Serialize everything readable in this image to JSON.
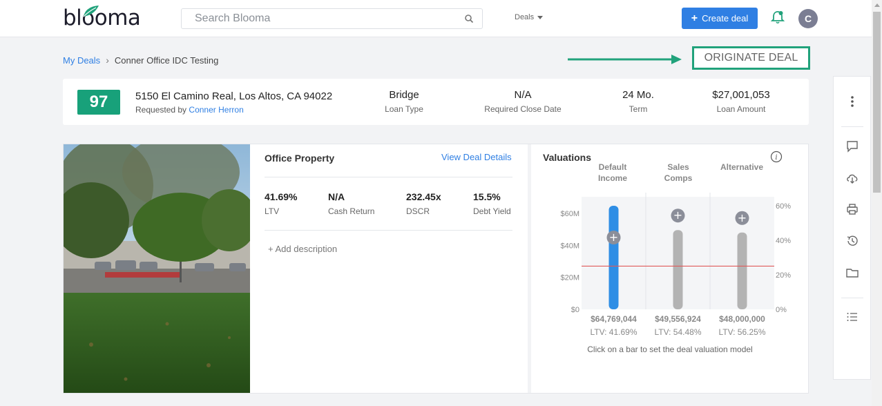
{
  "app": {
    "logo_text": "blooma",
    "search_placeholder": "Search Blooma",
    "deals_menu": "Deals",
    "create_deal": "Create deal",
    "avatar_initial": "C"
  },
  "breadcrumb": {
    "root": "My Deals",
    "current": "Conner Office IDC Testing"
  },
  "originate_label": "ORIGINATE DEAL",
  "summary": {
    "score": "97",
    "address": "5150 El Camino Real, Los Altos, CA 94022",
    "requested_prefix": "Requested by",
    "requested_by": "Conner Herron",
    "stats": [
      {
        "value": "Bridge",
        "label": "Loan Type"
      },
      {
        "value": "N/A",
        "label": "Required Close Date"
      },
      {
        "value": "24 Mo.",
        "label": "Term"
      },
      {
        "value": "$27,001,053",
        "label": "Loan Amount"
      }
    ]
  },
  "property": {
    "title": "Office Property",
    "view_details": "View Deal Details",
    "metrics": [
      {
        "value": "41.69%",
        "label": "LTV"
      },
      {
        "value": "N/A",
        "label": "Cash Return"
      },
      {
        "value": "232.45x",
        "label": "DSCR"
      },
      {
        "value": "15.5%",
        "label": "Debt Yield"
      }
    ],
    "add_description": "+ Add description"
  },
  "valuations": {
    "title": "Valuations",
    "columns": [
      {
        "line1": "Default",
        "line2": "Income"
      },
      {
        "line1": "Sales",
        "line2": "Comps"
      },
      {
        "line1": "Alternative",
        "line2": ""
      }
    ],
    "hint": "Click on a bar to set the deal valuation model"
  },
  "chart_data": {
    "type": "bar",
    "categories": [
      "Default Income",
      "Sales Comps",
      "Alternative"
    ],
    "values": [
      64769044,
      49556924,
      48000000
    ],
    "value_labels": [
      "$64,769,044",
      "$49,556,924",
      "$48,000,000"
    ],
    "ltv_labels": [
      "LTV: 41.69%",
      "LTV: 54.48%",
      "LTV: 56.25%"
    ],
    "selected_index": 0,
    "left_ticks": [
      "$60M",
      "$40M",
      "$20M",
      "$0"
    ],
    "left_tick_values": [
      60000000,
      40000000,
      20000000,
      0
    ],
    "right_ticks": [
      "60%",
      "40%",
      "20%",
      "0%"
    ],
    "ylim": [
      0,
      70000000
    ],
    "reference_line_value": 27001053,
    "colors": {
      "selected": "#2f8ee5",
      "other": "#b3b3b3",
      "reference": "#e05a5a",
      "plus": "#8b8e99"
    }
  },
  "side_panel": {
    "icons": [
      "more-vertical-icon",
      "comment-icon",
      "cloud-download-icon",
      "print-icon",
      "history-icon",
      "folder-icon",
      "list-icon"
    ]
  }
}
